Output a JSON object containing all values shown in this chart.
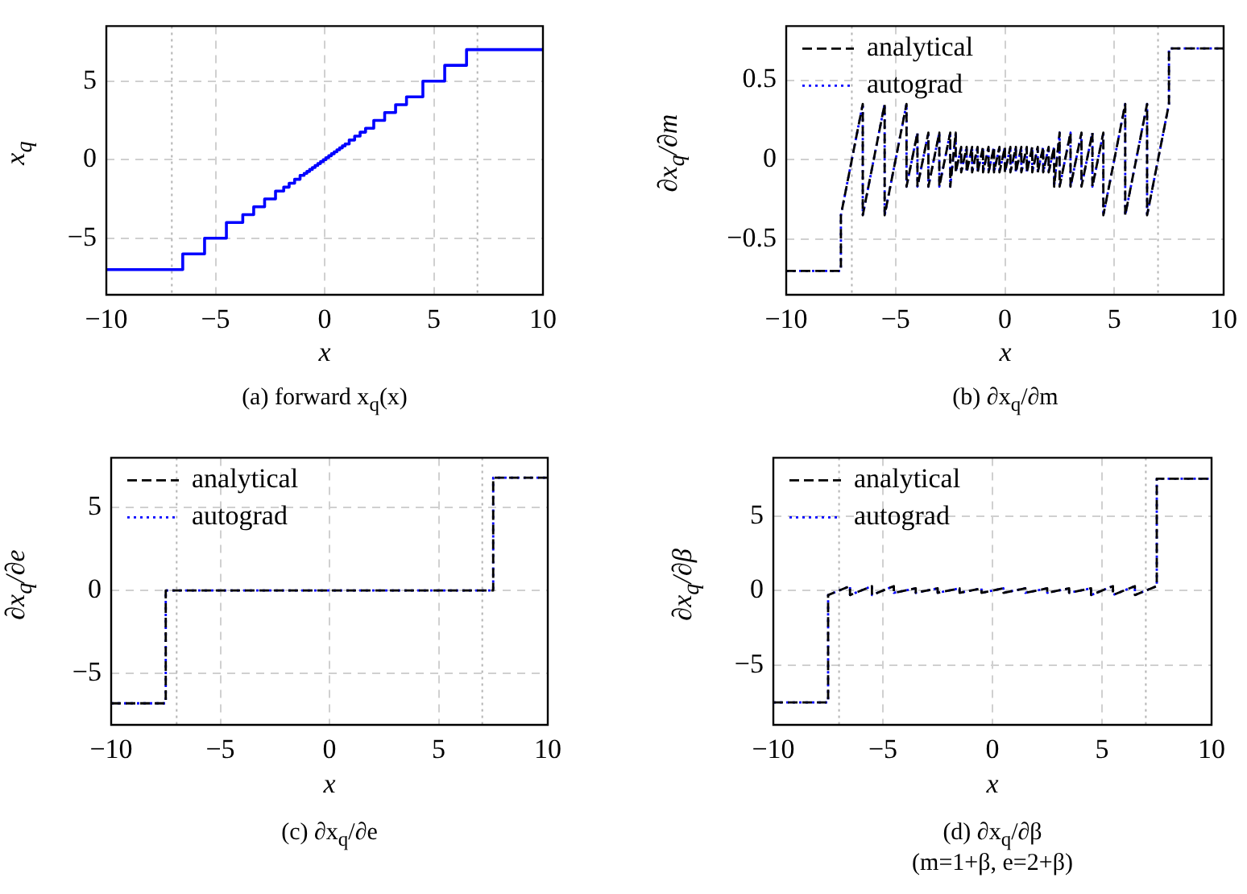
{
  "chart_data": [
    {
      "type": "step",
      "xlabel": "x",
      "ylabel": "x$_{q}$",
      "annotations": [
        "(a) forward x$_{q}$(x)"
      ],
      "xlim": [
        -10,
        10
      ],
      "ylim": [
        -8.6,
        8.5
      ],
      "xticks": [
        -10,
        -5,
        0,
        5,
        10
      ],
      "yticks": [
        -5,
        0,
        5
      ],
      "grid": true,
      "line_style": "solid",
      "ref_lines": [
        {
          "axis": "x",
          "value": -7,
          "color": "#b4b4b4",
          "line_style": "dotted"
        },
        {
          "axis": "x",
          "value": 7,
          "color": "#b4b4b4",
          "line_style": "dotted"
        }
      ],
      "x": [
        -10,
        -6.5,
        -5.5,
        -4.5,
        -3.75,
        -3.25,
        -2.75,
        -2.25,
        -1.875,
        -1.625,
        -1.375,
        -1.125,
        -0.9375,
        -0.8125,
        -0.6875,
        -0.5625,
        -0.4375,
        -0.3125,
        -0.1875,
        -0.0625,
        0.0625,
        0.1875,
        0.3125,
        0.4375,
        0.5625,
        0.6875,
        0.8125,
        0.9375,
        1.125,
        1.375,
        1.625,
        1.875,
        2.25,
        2.75,
        3.25,
        3.75,
        4.5,
        5.5,
        6.5,
        10
      ],
      "series": [
        {
          "color": "#0000ff",
          "values": [
            -7,
            -6,
            -5,
            -4,
            -3.5,
            -3,
            -2.5,
            -2,
            -1.75,
            -1.5,
            -1.25,
            -1,
            -0.875,
            -0.75,
            -0.625,
            -0.5,
            -0.375,
            -0.25,
            -0.125,
            0,
            0.125,
            0.25,
            0.375,
            0.5,
            0.625,
            0.75,
            0.875,
            1,
            1.25,
            1.5,
            1.75,
            2,
            2.5,
            3,
            3.5,
            4,
            5,
            6,
            7,
            7
          ]
        }
      ]
    },
    {
      "type": "line",
      "xlabel": "x",
      "ylabel": "∂x$_{q}$/∂m",
      "annotations": [
        "(b) ∂x$_{q}$/∂m"
      ],
      "xlim": [
        -10,
        10
      ],
      "ylim": [
        -0.85,
        0.84
      ],
      "xticks": [
        -10,
        -5,
        0,
        5,
        10
      ],
      "yticks": [
        -0.5,
        0,
        0.5
      ],
      "grid": true,
      "legend": "top left",
      "ref_lines": [
        {
          "axis": "x",
          "value": -7,
          "color": "#b4b4b4",
          "line_style": "dotted"
        },
        {
          "axis": "x",
          "value": 7,
          "color": "#b4b4b4",
          "line_style": "dotted"
        }
      ],
      "x": [
        -10,
        -7.5,
        -7.5,
        -6.5,
        -6.5,
        -5.5,
        -5.5,
        -4.5,
        -4.5,
        -4,
        -4,
        -3.5,
        -3.5,
        -3,
        -3,
        -2.5,
        -2.5,
        -2.25,
        -2.25,
        -2,
        -2,
        -1.75,
        -1.75,
        -1.5,
        -1.5,
        -1.25,
        -1.25,
        -1,
        -1,
        -0.75,
        -0.75,
        -0.5,
        -0.5,
        -0.25,
        -0.25,
        0,
        0,
        0.25,
        0.25,
        0.5,
        0.5,
        0.75,
        0.75,
        1,
        1,
        1.25,
        1.25,
        1.5,
        1.5,
        1.75,
        1.75,
        2,
        2,
        2.25,
        2.25,
        2.5,
        2.5,
        3,
        3,
        3.5,
        3.5,
        4,
        4,
        4.5,
        4.5,
        5.5,
        5.5,
        6.5,
        6.5,
        7.5,
        7.5,
        10
      ],
      "series": [
        {
          "name": "analytical",
          "color": "#000000",
          "line_style": "dashed",
          "values": [
            -0.7,
            -0.7,
            -0.35,
            0.35,
            -0.35,
            0.35,
            -0.35,
            0.35,
            -0.17,
            0.17,
            -0.17,
            0.17,
            -0.17,
            0.17,
            -0.17,
            0.17,
            -0.17,
            0.17,
            -0.08,
            0.08,
            -0.08,
            0.08,
            -0.08,
            0.08,
            -0.08,
            0.08,
            -0.08,
            0.08,
            -0.08,
            0.08,
            -0.08,
            0.08,
            -0.08,
            0.08,
            -0.08,
            0.08,
            -0.08,
            0.08,
            -0.08,
            0.08,
            -0.08,
            0.08,
            -0.08,
            0.08,
            -0.08,
            0.08,
            -0.08,
            0.08,
            -0.08,
            0.08,
            -0.08,
            0.08,
            -0.08,
            0.08,
            -0.17,
            0.17,
            -0.17,
            0.17,
            -0.17,
            0.17,
            -0.17,
            0.17,
            -0.17,
            0.17,
            -0.35,
            0.35,
            -0.35,
            0.35,
            -0.35,
            0.35,
            0.7,
            0.7
          ]
        },
        {
          "name": "autograd",
          "color": "#0000ff",
          "line_style": "dotted",
          "values": [
            -0.7,
            -0.7,
            -0.35,
            0.35,
            -0.35,
            0.35,
            -0.35,
            0.35,
            -0.17,
            0.17,
            -0.17,
            0.17,
            -0.17,
            0.17,
            -0.17,
            0.17,
            -0.17,
            0.17,
            -0.08,
            0.08,
            -0.08,
            0.08,
            -0.08,
            0.08,
            -0.08,
            0.08,
            -0.08,
            0.08,
            -0.08,
            0.08,
            -0.08,
            0.08,
            -0.08,
            0.08,
            -0.08,
            0.08,
            -0.08,
            0.08,
            -0.08,
            0.08,
            -0.08,
            0.08,
            -0.08,
            0.08,
            -0.08,
            0.08,
            -0.08,
            0.08,
            -0.08,
            0.08,
            -0.08,
            0.08,
            -0.08,
            0.08,
            -0.17,
            0.17,
            -0.17,
            0.17,
            -0.17,
            0.17,
            -0.17,
            0.17,
            -0.17,
            0.17,
            -0.35,
            0.35,
            -0.35,
            0.35,
            -0.35,
            0.35,
            0.7,
            0.7
          ]
        }
      ]
    },
    {
      "type": "line",
      "xlabel": "x",
      "ylabel": "∂x$_{q}$/∂e",
      "annotations": [
        "(c) ∂x$_{q}$/∂e"
      ],
      "xlim": [
        -10,
        10
      ],
      "ylim": [
        -8.1,
        8
      ],
      "xticks": [
        -10,
        -5,
        0,
        5,
        10
      ],
      "yticks": [
        -5,
        0,
        5
      ],
      "grid": true,
      "legend": "top left",
      "ref_lines": [
        {
          "axis": "x",
          "value": -7,
          "color": "#b4b4b4",
          "line_style": "dotted"
        },
        {
          "axis": "x",
          "value": 7,
          "color": "#b4b4b4",
          "line_style": "dotted"
        }
      ],
      "x": [
        -10,
        -7.5,
        -7.5,
        7.5,
        7.5,
        10
      ],
      "series": [
        {
          "name": "analytical",
          "color": "#000000",
          "line_style": "dashed",
          "values": [
            -6.8,
            -6.8,
            0,
            0,
            6.8,
            6.8
          ]
        },
        {
          "name": "autograd",
          "color": "#0000ff",
          "line_style": "dotted",
          "values": [
            -6.8,
            -6.8,
            0,
            0,
            6.8,
            6.8
          ]
        }
      ]
    },
    {
      "type": "line",
      "xlabel": "x",
      "ylabel": "∂x$_{q}$/∂β",
      "annotations": [
        "(d) ∂x$_{q}$/∂β",
        "(m=1+β, e=2+β)"
      ],
      "xlim": [
        -10,
        10
      ],
      "ylim": [
        -9,
        8.9
      ],
      "xticks": [
        -10,
        -5,
        0,
        5,
        10
      ],
      "yticks": [
        -5,
        0,
        5
      ],
      "grid": true,
      "legend": "top left",
      "ref_lines": [
        {
          "axis": "x",
          "value": -7,
          "color": "#b4b4b4",
          "line_style": "dotted"
        },
        {
          "axis": "x",
          "value": 7,
          "color": "#b4b4b4",
          "line_style": "dotted"
        }
      ],
      "x": [
        -10,
        -7.5,
        -7.5,
        -6.5,
        -6.5,
        -5.5,
        -5.5,
        -4.5,
        -4.5,
        -3.5,
        -3.5,
        -2.5,
        -2.5,
        -1.5,
        -1.5,
        -0.5,
        -0.5,
        0.5,
        0.5,
        1.5,
        1.5,
        2.5,
        2.5,
        3.5,
        3.5,
        4.5,
        4.5,
        5.5,
        5.5,
        6.5,
        6.5,
        7.5,
        7.5,
        10
      ],
      "series": [
        {
          "name": "analytical",
          "color": "#000000",
          "line_style": "dashed",
          "values": [
            -7.5,
            -7.5,
            -0.3,
            0.3,
            -0.3,
            0.3,
            -0.3,
            0.3,
            -0.15,
            0.15,
            -0.15,
            0.15,
            -0.15,
            0.15,
            -0.15,
            0.15,
            -0.15,
            0.15,
            -0.15,
            0.15,
            -0.15,
            0.15,
            -0.15,
            0.15,
            -0.15,
            0.15,
            -0.3,
            0.3,
            -0.3,
            0.3,
            -0.3,
            0.3,
            7.5,
            7.5
          ]
        },
        {
          "name": "autograd",
          "color": "#0000ff",
          "line_style": "dotted",
          "values": [
            -7.5,
            -7.5,
            -0.3,
            0.3,
            -0.3,
            0.3,
            -0.3,
            0.3,
            -0.15,
            0.15,
            -0.15,
            0.15,
            -0.15,
            0.15,
            -0.15,
            0.15,
            -0.15,
            0.15,
            -0.15,
            0.15,
            -0.15,
            0.15,
            -0.15,
            0.15,
            -0.15,
            0.15,
            -0.3,
            0.3,
            -0.3,
            0.3,
            -0.3,
            0.3,
            7.5,
            7.5
          ]
        }
      ]
    }
  ]
}
